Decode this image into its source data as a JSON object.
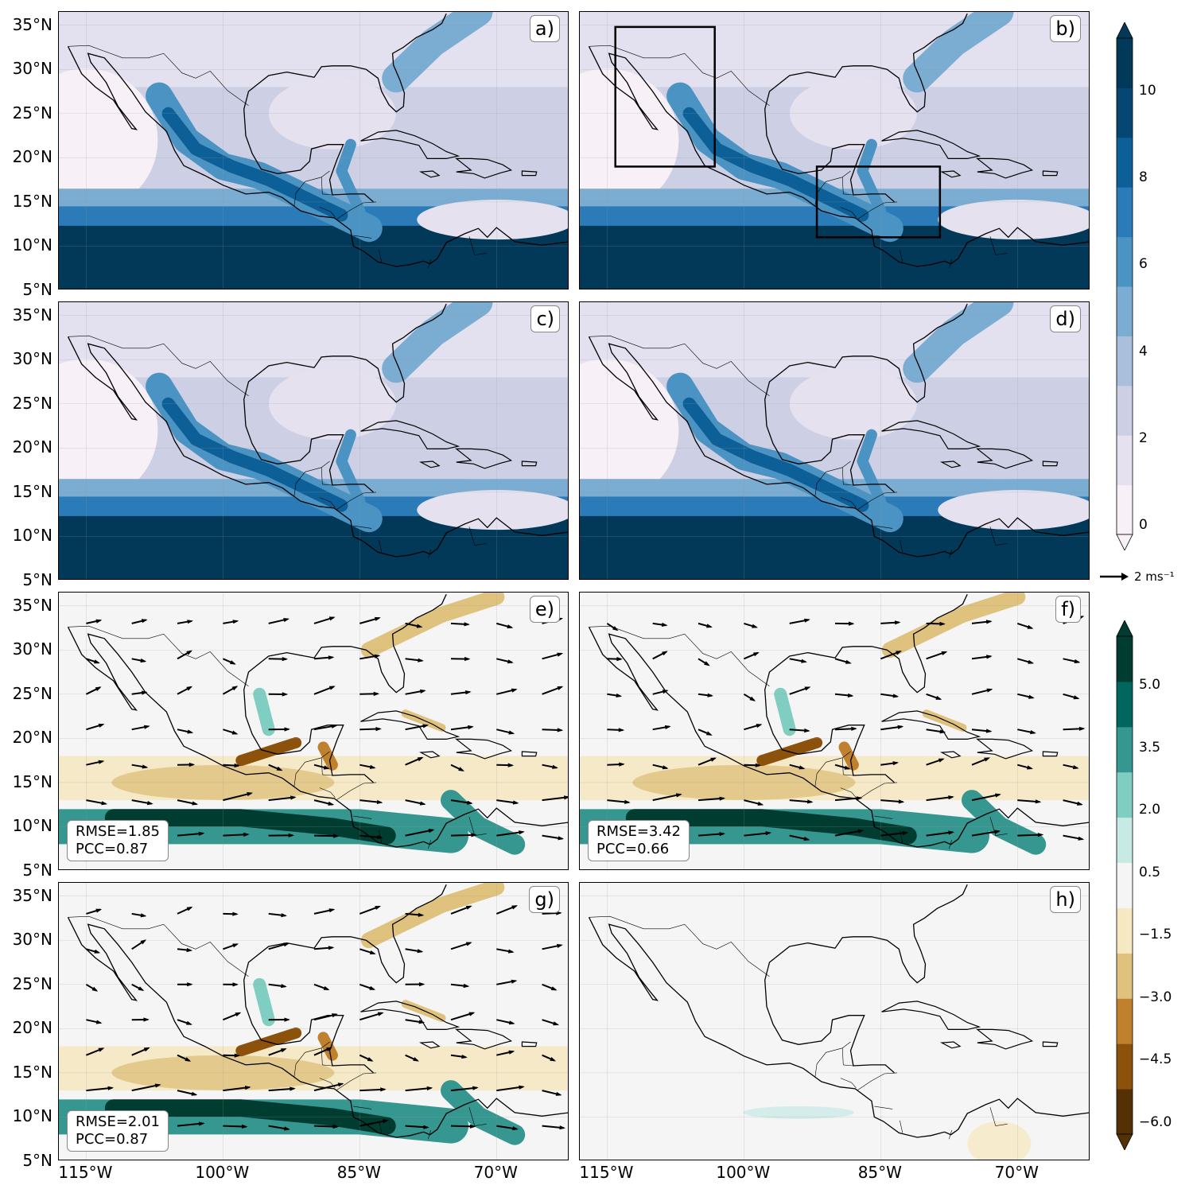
{
  "panels": [
    {
      "id": "a",
      "label": "a)",
      "field": "precip",
      "rmse": "",
      "pcc": ""
    },
    {
      "id": "b",
      "label": "b)",
      "field": "precip",
      "rmse": "",
      "pcc": ""
    },
    {
      "id": "c",
      "label": "c)",
      "field": "precip",
      "rmse": "",
      "pcc": ""
    },
    {
      "id": "d",
      "label": "d)",
      "field": "precip",
      "rmse": "",
      "pcc": ""
    },
    {
      "id": "e",
      "label": "e)",
      "field": "diff",
      "rmse": "RMSE=1.85",
      "pcc": "PCC=0.87"
    },
    {
      "id": "f",
      "label": "f)",
      "field": "diff",
      "rmse": "RMSE=3.42",
      "pcc": "PCC=0.66"
    },
    {
      "id": "g",
      "label": "g)",
      "field": "diff",
      "rmse": "RMSE=2.01",
      "pcc": "PCC=0.87"
    },
    {
      "id": "h",
      "label": "h)",
      "field": "diff",
      "rmse": "",
      "pcc": ""
    }
  ],
  "lat_ticks": [
    "35°N",
    "30°N",
    "25°N",
    "20°N",
    "15°N",
    "10°N",
    "5°N"
  ],
  "lon_ticks": [
    "115°W",
    "100°W",
    "85°W",
    "70°W"
  ],
  "colorbar_top": {
    "ticks": [
      "10",
      "8",
      "6",
      "4",
      "2",
      "0"
    ],
    "colors": [
      "#f7f0f7",
      "#e6e1ef",
      "#cdd0e5",
      "#a9bfdc",
      "#7bacd1",
      "#4a93c2",
      "#2b7bb9",
      "#0d5f97",
      "#064673",
      "#023858"
    ]
  },
  "colorbar_bottom": {
    "ticks": [
      "5.0",
      "3.5",
      "2.0",
      "0.5",
      "−1.5",
      "−3.0",
      "−4.5",
      "−6.0"
    ],
    "colors": [
      "#543005",
      "#8c510a",
      "#bf812d",
      "#dfc27d",
      "#f6e8c3",
      "#f5f5f5",
      "#c7eae5",
      "#80cdc1",
      "#35978f",
      "#01665e",
      "#003c30"
    ]
  },
  "vector_reference": "2 ms⁻¹",
  "boxes": [
    {
      "name": "northwest-mexico-box"
    },
    {
      "name": "central-america-box"
    }
  ]
}
